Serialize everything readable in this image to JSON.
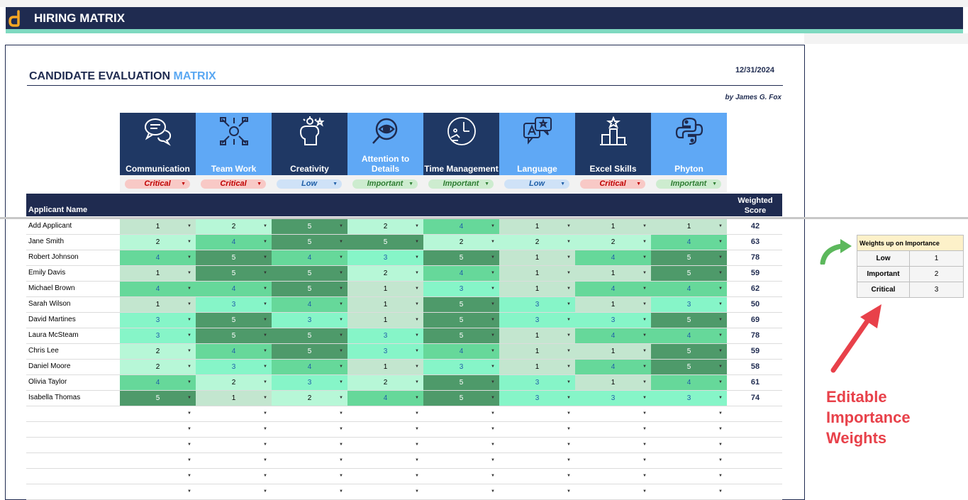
{
  "app": {
    "title": "HIRING MATRIX"
  },
  "doc": {
    "title_main": "CANDIDATE EVALUATION ",
    "title_highlight": "MATRIX",
    "date": "12/31/2024",
    "author": "by James G. Fox"
  },
  "criteria": [
    {
      "label": "Communication",
      "icon": "speech-bubbles-icon",
      "importance": "Critical"
    },
    {
      "label": "Team Work",
      "icon": "teamwork-hands-icon",
      "importance": "Critical"
    },
    {
      "label": "Creativity",
      "icon": "creative-head-icon",
      "importance": "Low"
    },
    {
      "label": "Attention to Details",
      "icon": "magnifier-eye-icon",
      "importance": "Important"
    },
    {
      "label": "Time Management",
      "icon": "clock-icon",
      "importance": "Important"
    },
    {
      "label": "Language",
      "icon": "language-bubbles-icon",
      "importance": "Low"
    },
    {
      "label": "Excel Skills",
      "icon": "podium-star-icon",
      "importance": "Critical"
    },
    {
      "label": "Phyton",
      "icon": "python-logo-icon",
      "importance": "Important"
    }
  ],
  "table": {
    "name_header": "Applicant Name",
    "score_header": "Weighted Score",
    "rows": [
      {
        "name": "Add Applicant",
        "scores": [
          1,
          2,
          5,
          2,
          4,
          1,
          1,
          1
        ],
        "total": "42"
      },
      {
        "name": "Jane Smith",
        "scores": [
          2,
          4,
          5,
          5,
          2,
          2,
          2,
          4
        ],
        "total": "63"
      },
      {
        "name": "Robert Johnson",
        "scores": [
          4,
          5,
          4,
          3,
          5,
          1,
          4,
          5
        ],
        "total": "78"
      },
      {
        "name": "Emily Davis",
        "scores": [
          1,
          5,
          5,
          2,
          4,
          1,
          1,
          5
        ],
        "total": "59"
      },
      {
        "name": "Michael Brown",
        "scores": [
          4,
          4,
          5,
          1,
          3,
          1,
          4,
          4
        ],
        "total": "62"
      },
      {
        "name": "Sarah Wilson",
        "scores": [
          1,
          3,
          4,
          1,
          5,
          3,
          1,
          3
        ],
        "total": "50"
      },
      {
        "name": "David Martines",
        "scores": [
          3,
          5,
          3,
          1,
          5,
          3,
          3,
          5
        ],
        "total": "69"
      },
      {
        "name": "Laura McSteam",
        "scores": [
          3,
          5,
          5,
          3,
          5,
          1,
          4,
          4
        ],
        "total": "78"
      },
      {
        "name": "Chris Lee",
        "scores": [
          2,
          4,
          5,
          3,
          4,
          1,
          1,
          5
        ],
        "total": "59"
      },
      {
        "name": "Daniel Moore",
        "scores": [
          2,
          3,
          4,
          1,
          3,
          1,
          4,
          5
        ],
        "total": "58"
      },
      {
        "name": "Olivia Taylor",
        "scores": [
          4,
          2,
          3,
          2,
          5,
          3,
          1,
          4
        ],
        "total": "61"
      },
      {
        "name": "Isabella Thomas",
        "scores": [
          5,
          1,
          2,
          4,
          5,
          3,
          3,
          3
        ],
        "total": "74"
      }
    ],
    "empty_rows": 6
  },
  "weights": {
    "title": "Weights up on Importance",
    "items": [
      {
        "label": "Low",
        "value": "1"
      },
      {
        "label": "Important",
        "value": "2"
      },
      {
        "label": "Critical",
        "value": "3"
      }
    ]
  },
  "annotation": {
    "line1": "Editable",
    "line2": "Importance",
    "line3": "Weights"
  },
  "colors": {
    "navy": "#1f2b50",
    "light_blue": "#5fa8f5",
    "accent": "#7fd9c0",
    "callout_red": "#e8414a",
    "arrow_green": "#5cb85c"
  }
}
